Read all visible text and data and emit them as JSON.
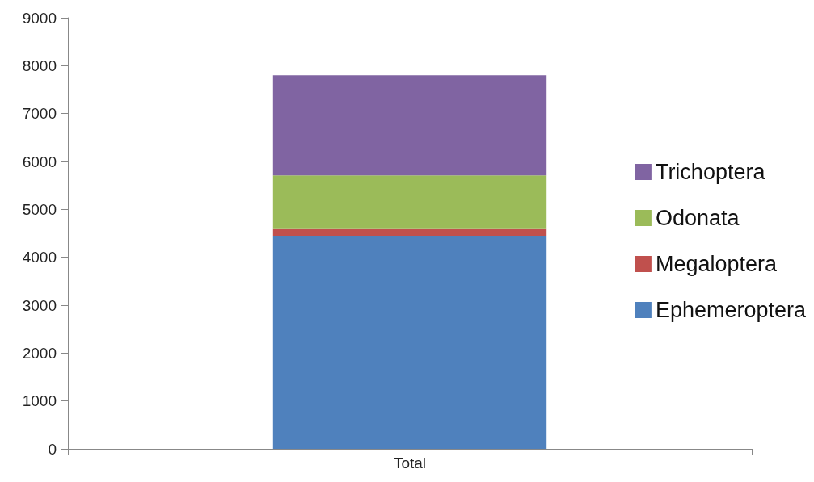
{
  "chart_data": {
    "type": "bar",
    "stacked": true,
    "categories": [
      "Total"
    ],
    "series": [
      {
        "name": "Ephemeroptera",
        "color": "#4f81bd",
        "values": [
          4450
        ]
      },
      {
        "name": "Megaloptera",
        "color": "#c0504d",
        "values": [
          140
        ]
      },
      {
        "name": "Odonata",
        "color": "#9bbb59",
        "values": [
          1120
        ]
      },
      {
        "name": "Trichoptera",
        "color": "#8064a2",
        "values": [
          2090
        ]
      }
    ],
    "ylim": [
      0,
      9000
    ],
    "yticks": [
      0,
      1000,
      2000,
      3000,
      4000,
      5000,
      6000,
      7000,
      8000,
      9000
    ],
    "grid": false,
    "legend": "right"
  }
}
